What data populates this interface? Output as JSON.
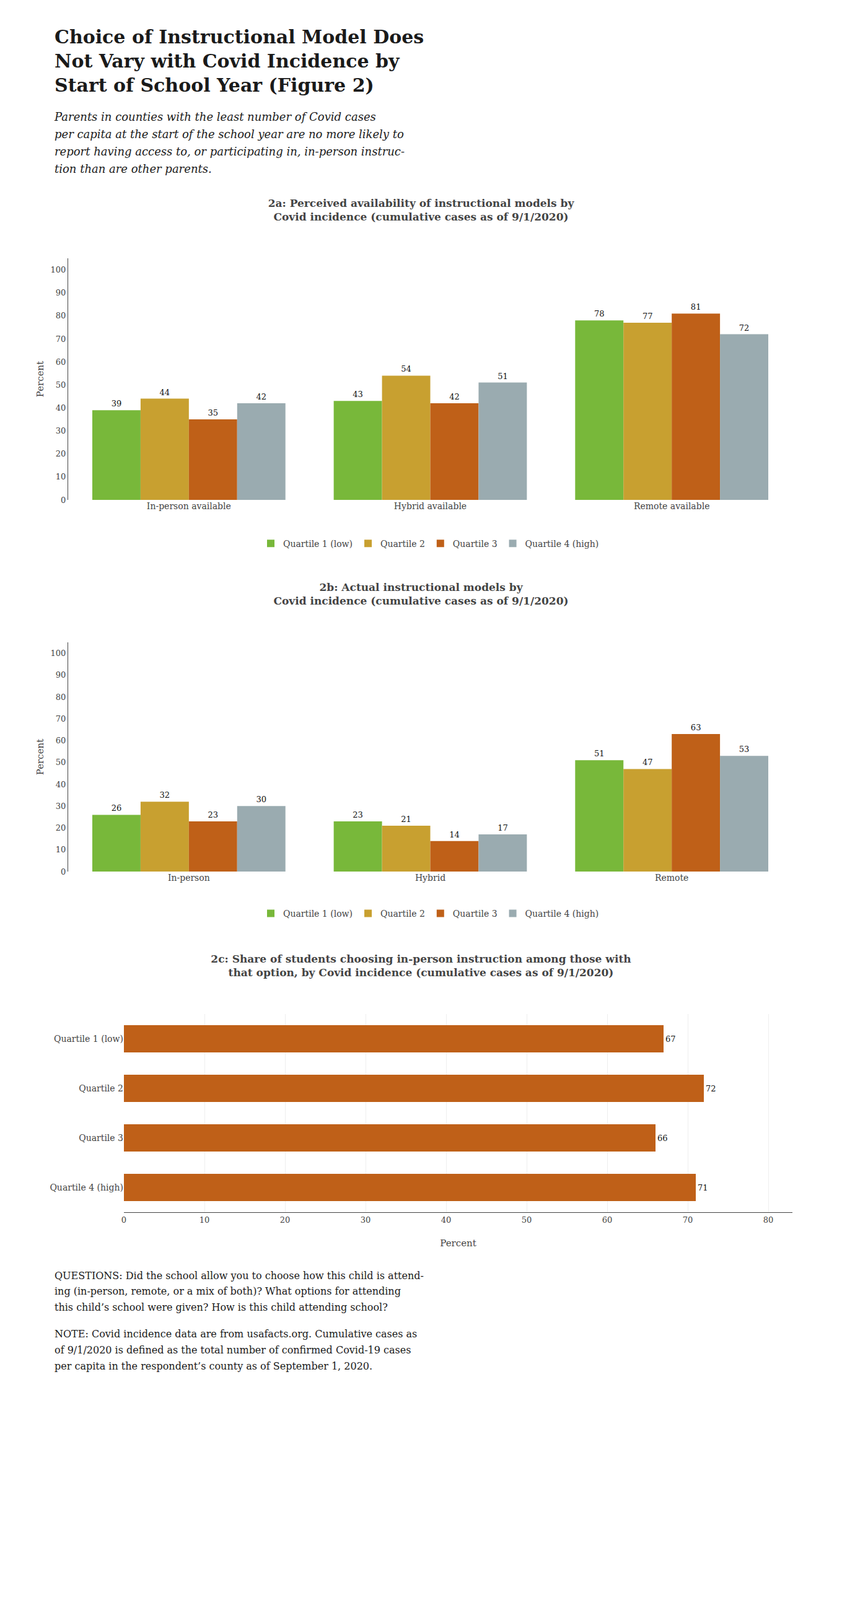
{
  "title": "Choice of Instructional Model Does\nNot Vary with Covid Incidence by\nStart of School Year (Figure 2)",
  "subtitle": "Parents in counties with the least number of Covid cases\nper capita at the start of the school year are no more likely to\nreport having access to, or participating in, in-person instruc-\ntion than are other parents.",
  "annotations": [
    "QUESTIONS: Did the school allow you to choose how this child is attend-\ning (in-person, remote, or a mix of both)? What options for attending\nthis child’s school were given? How is this child attending school?",
    "NOTE: Covid incidence data are from usafacts.org. Cumulative cases as\nof 9/1/2020 is defined as the total number of confirmed Covid-19 cases\nper capita in the respondent’s county as of September 1, 2020."
  ],
  "chart_data": [
    {
      "type": "bar",
      "title": "2a: Perceived availability of instructional models by\nCovid incidence (cumulative cases as of 9/1/2020)",
      "categories": [
        "In-person available",
        "Hybrid available",
        "Remote available"
      ],
      "series": [
        {
          "name": "Quartile 1 (low)",
          "color": "#78b83a",
          "values": [
            39,
            43,
            78
          ]
        },
        {
          "name": "Quartile 2",
          "color": "#c8a030",
          "values": [
            44,
            54,
            77
          ]
        },
        {
          "name": "Quartile 3",
          "color": "#bf6018",
          "values": [
            35,
            42,
            81
          ]
        },
        {
          "name": "Quartile 4 (high)",
          "color": "#9aabb0",
          "values": [
            42,
            51,
            72
          ]
        }
      ],
      "ylabel": "Percent",
      "ylim": [
        0,
        105
      ],
      "yticks": [
        0,
        10,
        20,
        30,
        40,
        50,
        60,
        70,
        80,
        90,
        100
      ],
      "grid": false,
      "legend": "bottom",
      "data_labels": true
    },
    {
      "type": "bar",
      "title": "2b: Actual instructional models by\nCovid incidence (cumulative cases as of 9/1/2020)",
      "categories": [
        "In-person",
        "Hybrid",
        "Remote"
      ],
      "series": [
        {
          "name": "Quartile 1 (low)",
          "color": "#78b83a",
          "values": [
            26,
            23,
            51
          ]
        },
        {
          "name": "Quartile 2",
          "color": "#c8a030",
          "values": [
            32,
            21,
            47
          ]
        },
        {
          "name": "Quartile 3",
          "color": "#bf6018",
          "values": [
            23,
            14,
            63
          ]
        },
        {
          "name": "Quartile 4 (high)",
          "color": "#9aabb0",
          "values": [
            30,
            17,
            53
          ]
        }
      ],
      "ylabel": "Percent",
      "ylim": [
        0,
        105
      ],
      "yticks": [
        0,
        10,
        20,
        30,
        40,
        50,
        60,
        70,
        80,
        90,
        100
      ],
      "grid": false,
      "legend": "bottom",
      "data_labels": true
    },
    {
      "type": "bar",
      "orientation": "horizontal",
      "title": "2c: Share of students choosing in-person instruction among those with\nthat option, by Covid incidence (cumulative cases as of 9/1/2020)",
      "categories": [
        "Quartile 4 (high)",
        "Quartile 3",
        "Quartile 2",
        "Quartile 1 (low)"
      ],
      "values": [
        71,
        66,
        72,
        67
      ],
      "color": "#bf6018",
      "xlabel": "Percent",
      "xlim": [
        0,
        83
      ],
      "xticks": [
        0,
        10,
        20,
        30,
        40,
        50,
        60,
        70,
        80
      ],
      "grid": true,
      "data_labels": true
    }
  ]
}
